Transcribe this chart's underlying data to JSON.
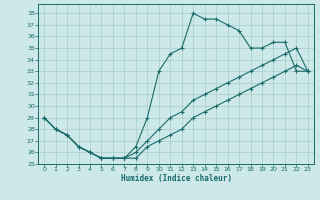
{
  "xlabel": "Humidex (Indice chaleur)",
  "bg_color": "#cce8e8",
  "line_color": "#1a6b6b",
  "grid_color": "#aacccc",
  "xlim": [
    -0.5,
    23.5
  ],
  "ylim": [
    25,
    38.8
  ],
  "yticks": [
    25,
    26,
    27,
    28,
    29,
    30,
    31,
    32,
    33,
    34,
    35,
    36,
    37,
    38
  ],
  "xticks": [
    0,
    1,
    2,
    3,
    4,
    5,
    6,
    7,
    8,
    9,
    10,
    11,
    12,
    13,
    14,
    15,
    16,
    17,
    18,
    19,
    20,
    21,
    22,
    23
  ],
  "series1_x": [
    0,
    1,
    2,
    3,
    4,
    5,
    6,
    7,
    8,
    9,
    10,
    11,
    12,
    13,
    14,
    15,
    16,
    17,
    18,
    19,
    20,
    21,
    22,
    23
  ],
  "series1_y": [
    29,
    28,
    27.5,
    26.5,
    26,
    25.5,
    25.5,
    25.5,
    26.5,
    29,
    33,
    34.5,
    35,
    38,
    37.5,
    37.5,
    37,
    36.5,
    35,
    35,
    35.5,
    35.5,
    33,
    33
  ],
  "series2_x": [
    0,
    1,
    2,
    3,
    4,
    5,
    6,
    7,
    8,
    9,
    10,
    11,
    12,
    13,
    14,
    15,
    16,
    17,
    18,
    19,
    20,
    21,
    22,
    23
  ],
  "series2_y": [
    29,
    28,
    27.5,
    26.5,
    26,
    25.5,
    25.5,
    25.5,
    26,
    27,
    28,
    29,
    29.5,
    30.5,
    31,
    31.5,
    32,
    32.5,
    33,
    33.5,
    34,
    34.5,
    35,
    33
  ],
  "series3_x": [
    0,
    1,
    2,
    3,
    4,
    5,
    6,
    7,
    8,
    9,
    10,
    11,
    12,
    13,
    14,
    15,
    16,
    17,
    18,
    19,
    20,
    21,
    22,
    23
  ],
  "series3_y": [
    29,
    28,
    27.5,
    26.5,
    26,
    25.5,
    25.5,
    25.5,
    25.5,
    26.5,
    27,
    27.5,
    28,
    29,
    29.5,
    30,
    30.5,
    31,
    31.5,
    32,
    32.5,
    33,
    33.5,
    33
  ]
}
